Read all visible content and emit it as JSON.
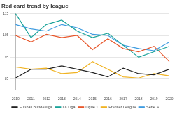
{
  "chart_data": {
    "type": "line",
    "title": "Red card trend by league",
    "categories": [
      "2010",
      "2011",
      "2012",
      "2013",
      "2014",
      "2015",
      "2016",
      "2017",
      "2018",
      "2019",
      "2020"
    ],
    "series": [
      {
        "name": "Fußball Bundesliga",
        "color": "#222222",
        "values": [
          85.5,
          89.5,
          89.5,
          91,
          89.5,
          88,
          86,
          90,
          87.5,
          87,
          89.5
        ]
      },
      {
        "name": "La Liga",
        "color": "#1aa39a",
        "values": [
          115,
          104,
          110,
          112,
          107,
          104,
          106,
          100.5,
          95,
          97.5,
          100
        ]
      },
      {
        "name": "Ligue 1",
        "color": "#e8562a",
        "values": [
          105,
          102,
          105.5,
          104,
          105,
          98.5,
          103.5,
          99,
          97.5,
          100,
          93
        ]
      },
      {
        "name": "Premier League",
        "color": "#f0b323",
        "values": [
          90.5,
          89.5,
          90,
          87.5,
          88,
          93,
          89.5,
          86,
          85.5,
          87.5,
          86.5
        ]
      },
      {
        "name": "Serie A",
        "color": "#3d9be0",
        "values": [
          110,
          108,
          107,
          110,
          108.5,
          105.5,
          105,
          100.5,
          99,
          98,
          102
        ]
      }
    ],
    "ylim": [
      80,
      115
    ],
    "yticks": [
      85,
      95,
      105,
      115
    ],
    "grid": true,
    "legend": "bottom"
  }
}
